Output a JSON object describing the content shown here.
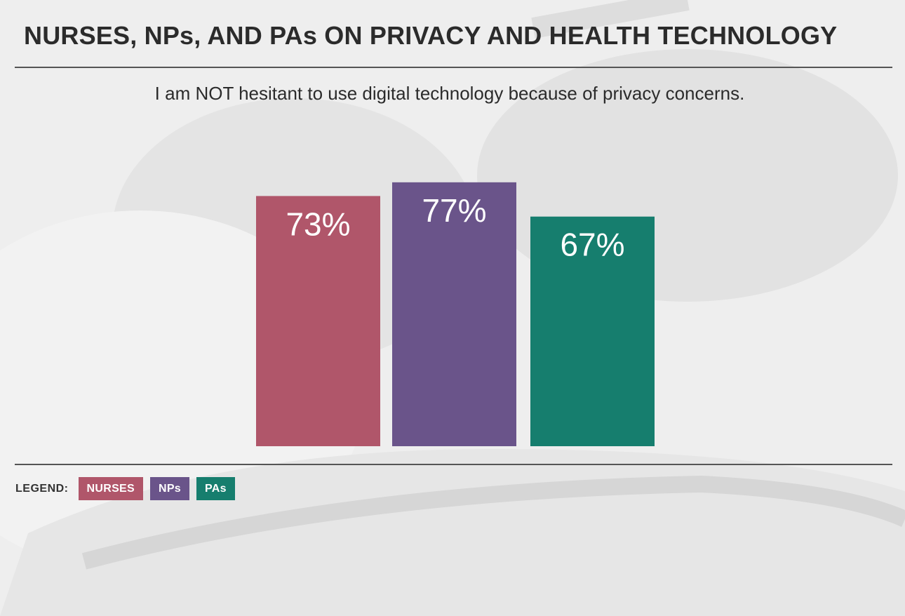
{
  "header": {
    "title": "NURSES, NPs, AND PAs ON PRIVACY AND HEALTH TECHNOLOGY"
  },
  "legend": {
    "label": "LEGEND:",
    "items": [
      {
        "label": "NURSES",
        "color": "#b0566a"
      },
      {
        "label": "NPs",
        "color": "#6a548a"
      },
      {
        "label": "PAs",
        "color": "#167e6e"
      }
    ]
  },
  "chart_data": {
    "type": "bar",
    "title": "I am NOT hesitant to use digital technology because of privacy concerns.",
    "categories": [
      "NURSES",
      "NPs",
      "PAs"
    ],
    "values": [
      73,
      77,
      67
    ],
    "value_labels": [
      "73%",
      "77%",
      "67%"
    ],
    "colors": [
      "#b0566a",
      "#6a548a",
      "#167e6e"
    ],
    "ylabel": "",
    "xlabel": "",
    "ylim": [
      0,
      100
    ],
    "grid": false,
    "legend_position": "bottom-left"
  }
}
